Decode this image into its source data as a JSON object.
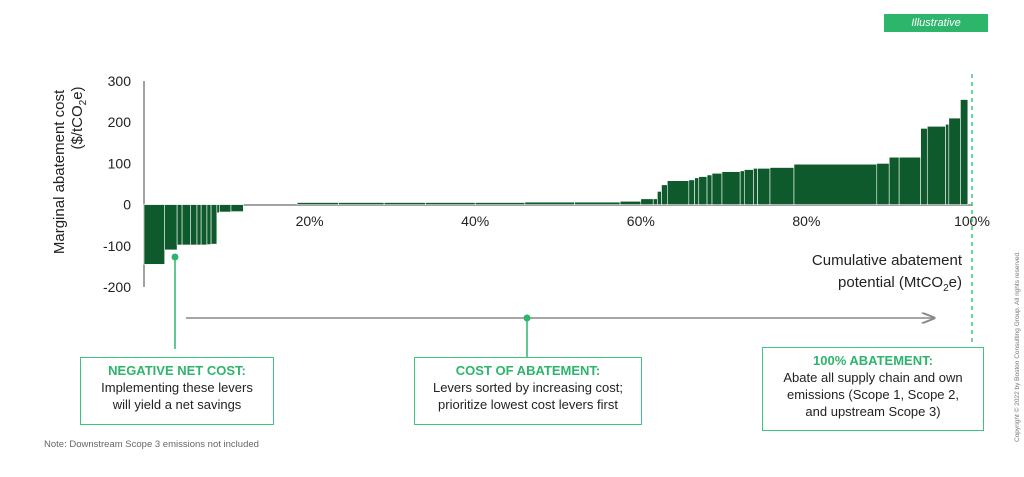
{
  "badge": "Illustrative",
  "ylabel_line1": "Marginal abatement cost",
  "ylabel_line2_prefix": "($/tCO",
  "ylabel_sub": "2",
  "ylabel_suffix": "e)",
  "xlabel_line1": "Cumulative abatement",
  "xlabel_line2_prefix": "potential (MtCO",
  "xlabel_sub": "2",
  "xlabel_suffix": "e)",
  "colors": {
    "bar": "#0e5a2c",
    "accent": "#2db56c",
    "box_border": "#3cc57e",
    "arrow": "#888888"
  },
  "boxes": {
    "negative": {
      "title": "NEGATIVE NET COST:",
      "line1": "Implementing these levers",
      "line2": "will yield a net savings"
    },
    "cost": {
      "title": "COST OF ABATEMENT:",
      "line1": "Levers sorted by increasing cost;",
      "line2": "prioritize lowest cost levers first"
    },
    "full": {
      "title": "100% ABATEMENT:",
      "line1": "Abate all supply chain and own",
      "line2": "emissions (Scope 1, Scope 2,",
      "line3": "and upstream Scope 3)"
    }
  },
  "note": "Note: Downstream Scope 3 emissions not included",
  "copyright": "Copyright © 2022 by Boston Consulting Group. All rights reserved.",
  "chart_data": {
    "type": "bar",
    "x_unit": "percent of cumulative abatement",
    "ylim": [
      -200,
      300
    ],
    "xlim": [
      0,
      100
    ],
    "yticks": [
      -200,
      -100,
      0,
      100,
      200,
      300
    ],
    "xticks": [
      "20%",
      "40%",
      "60%",
      "80%",
      "100%"
    ],
    "xtick_values": [
      20,
      40,
      60,
      80,
      100
    ],
    "grid": false,
    "segments": [
      {
        "x0": 0.0,
        "x1": 2.5,
        "value": -145
      },
      {
        "x0": 2.5,
        "x1": 4.0,
        "value": -110
      },
      {
        "x0": 4.0,
        "x1": 4.6,
        "value": -98
      },
      {
        "x0": 4.6,
        "x1": 5.6,
        "value": -98
      },
      {
        "x0": 5.6,
        "x1": 6.4,
        "value": -98
      },
      {
        "x0": 6.4,
        "x1": 6.9,
        "value": -98
      },
      {
        "x0": 6.9,
        "x1": 7.6,
        "value": -98
      },
      {
        "x0": 7.6,
        "x1": 8.1,
        "value": -97
      },
      {
        "x0": 8.1,
        "x1": 8.8,
        "value": -96
      },
      {
        "x0": 8.8,
        "x1": 9.1,
        "value": -20
      },
      {
        "x0": 9.1,
        "x1": 10.5,
        "value": -18
      },
      {
        "x0": 10.5,
        "x1": 12.0,
        "value": -17
      },
      {
        "x0": 18.5,
        "x1": 23.5,
        "value": 5
      },
      {
        "x0": 23.5,
        "x1": 29.0,
        "value": 5
      },
      {
        "x0": 29.0,
        "x1": 34.0,
        "value": 5
      },
      {
        "x0": 34.0,
        "x1": 40.0,
        "value": 5
      },
      {
        "x0": 40.0,
        "x1": 46.0,
        "value": 5
      },
      {
        "x0": 46.0,
        "x1": 52.0,
        "value": 6
      },
      {
        "x0": 52.0,
        "x1": 57.5,
        "value": 6
      },
      {
        "x0": 57.5,
        "x1": 60.0,
        "value": 8
      },
      {
        "x0": 60.0,
        "x1": 61.5,
        "value": 14
      },
      {
        "x0": 61.5,
        "x1": 62.0,
        "value": 14
      },
      {
        "x0": 62.0,
        "x1": 62.5,
        "value": 32
      },
      {
        "x0": 62.5,
        "x1": 63.2,
        "value": 48
      },
      {
        "x0": 63.2,
        "x1": 65.8,
        "value": 58
      },
      {
        "x0": 65.8,
        "x1": 66.5,
        "value": 60
      },
      {
        "x0": 66.5,
        "x1": 67.0,
        "value": 65
      },
      {
        "x0": 67.0,
        "x1": 68.0,
        "value": 68
      },
      {
        "x0": 68.0,
        "x1": 68.6,
        "value": 72
      },
      {
        "x0": 68.6,
        "x1": 69.8,
        "value": 76
      },
      {
        "x0": 69.8,
        "x1": 72.0,
        "value": 80
      },
      {
        "x0": 72.0,
        "x1": 72.5,
        "value": 82
      },
      {
        "x0": 72.5,
        "x1": 73.6,
        "value": 85
      },
      {
        "x0": 73.6,
        "x1": 74.1,
        "value": 88
      },
      {
        "x0": 74.1,
        "x1": 75.6,
        "value": 88
      },
      {
        "x0": 75.6,
        "x1": 78.5,
        "value": 90
      },
      {
        "x0": 78.5,
        "x1": 88.5,
        "value": 98
      },
      {
        "x0": 88.5,
        "x1": 90.0,
        "value": 100
      },
      {
        "x0": 90.0,
        "x1": 91.2,
        "value": 115
      },
      {
        "x0": 91.2,
        "x1": 93.8,
        "value": 115
      },
      {
        "x0": 93.8,
        "x1": 94.6,
        "value": 185
      },
      {
        "x0": 94.6,
        "x1": 96.8,
        "value": 190
      },
      {
        "x0": 96.8,
        "x1": 97.2,
        "value": 195
      },
      {
        "x0": 97.2,
        "x1": 98.6,
        "value": 210
      },
      {
        "x0": 98.6,
        "x1": 99.5,
        "value": 255
      }
    ]
  }
}
